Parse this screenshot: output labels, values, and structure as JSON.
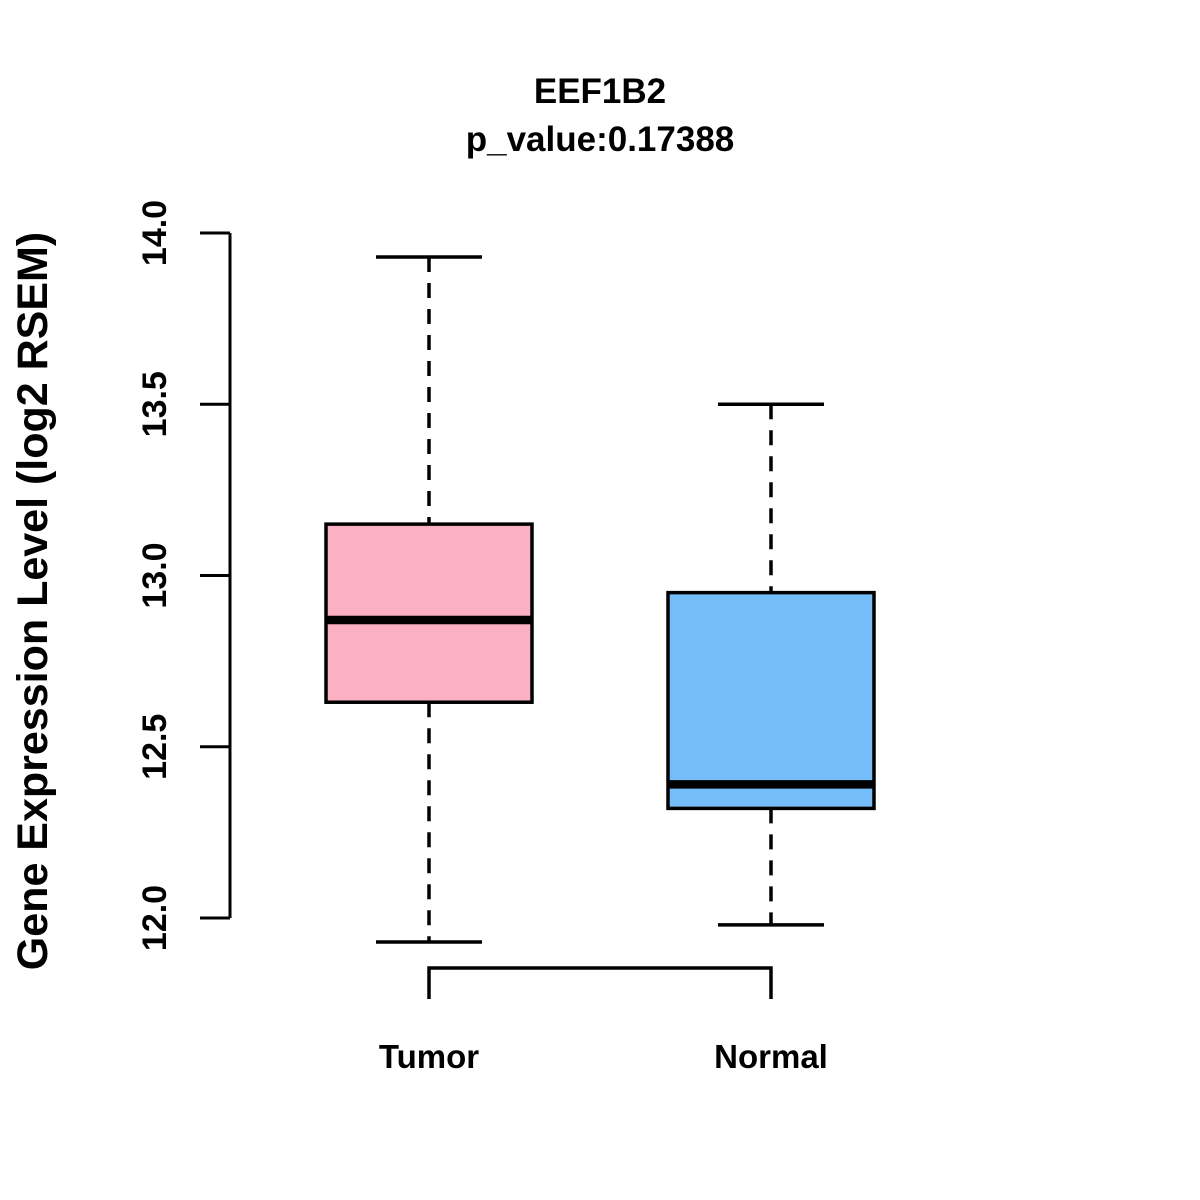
{
  "figure": {
    "title": "EEF1B2",
    "subtitle": "p_value:0.17388",
    "ylabel": "Gene Expression Level (log2 RSEM)"
  },
  "chart_data": {
    "type": "boxplot",
    "title": "EEF1B2",
    "subtitle": "p_value:0.17388",
    "xlabel": "",
    "ylabel": "Gene Expression Level (log2 RSEM)",
    "ylim": [
      12.0,
      14.0
    ],
    "yticks": [
      "12.0",
      "12.5",
      "13.0",
      "13.5",
      "14.0"
    ],
    "grid": "off",
    "legend": "none",
    "categories": [
      "Tumor",
      "Normal"
    ],
    "groups": [
      {
        "label": "Tumor",
        "color": "#FCB1C3",
        "whisker_low": 11.93,
        "q1": 12.63,
        "median": 12.87,
        "q3": 13.15,
        "whisker_high": 13.93
      },
      {
        "label": "Normal",
        "color": "#74BDF8",
        "whisker_low": 11.98,
        "q1": 12.32,
        "median": 12.39,
        "q3": 12.95,
        "whisker_high": 13.5
      }
    ],
    "box_border_color": "#000000",
    "median_color": "#000000",
    "axis_color": "#000000",
    "comparison_bracket": {
      "between": [
        "Tumor",
        "Normal"
      ]
    }
  }
}
